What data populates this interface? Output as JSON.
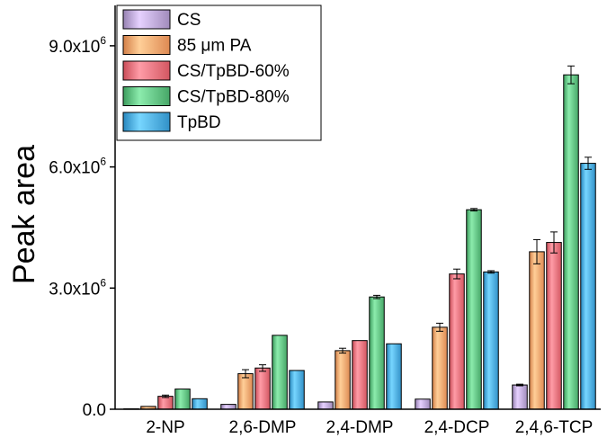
{
  "chart_data": {
    "type": "bar",
    "ylabel": "Peak area",
    "xlabel": "",
    "ylim": [
      0,
      10000000
    ],
    "yticks": [
      {
        "value": 0,
        "base": "0.0",
        "exp": ""
      },
      {
        "value": 3000000,
        "base": "3.0x10",
        "exp": "6"
      },
      {
        "value": 6000000,
        "base": "6.0x10",
        "exp": "6"
      },
      {
        "value": 9000000,
        "base": "9.0x10",
        "exp": "6"
      }
    ],
    "categories": [
      "2-NP",
      "2,6-DMP",
      "2,4-DMP",
      "2,4-DCP",
      "2,4,6-TCP"
    ],
    "series": [
      {
        "name": "CS",
        "color": "#b9a4d4",
        "values": [
          10000,
          120000,
          180000,
          250000,
          600000
        ],
        "errors": [
          0,
          0,
          0,
          0,
          20000
        ]
      },
      {
        "name": "85 μm PA",
        "color": "#f6a26b",
        "values": [
          70000,
          880000,
          1450000,
          2030000,
          3900000
        ],
        "errors": [
          0,
          100000,
          60000,
          100000,
          300000
        ]
      },
      {
        "name": "CS/TpBD-60%",
        "color": "#ec6f7a",
        "values": [
          320000,
          1020000,
          1700000,
          3350000,
          4130000
        ],
        "errors": [
          30000,
          80000,
          0,
          120000,
          260000
        ]
      },
      {
        "name": "CS/TpBD-80%",
        "color": "#5fbf80",
        "values": [
          500000,
          1830000,
          2780000,
          4940000,
          8280000
        ],
        "errors": [
          0,
          0,
          40000,
          30000,
          220000
        ]
      },
      {
        "name": "TpBD",
        "color": "#4aa9e0",
        "values": [
          260000,
          960000,
          1620000,
          3400000,
          6090000
        ],
        "errors": [
          0,
          0,
          0,
          30000,
          150000
        ]
      }
    ],
    "legend_position": "top-left",
    "grid": false
  }
}
